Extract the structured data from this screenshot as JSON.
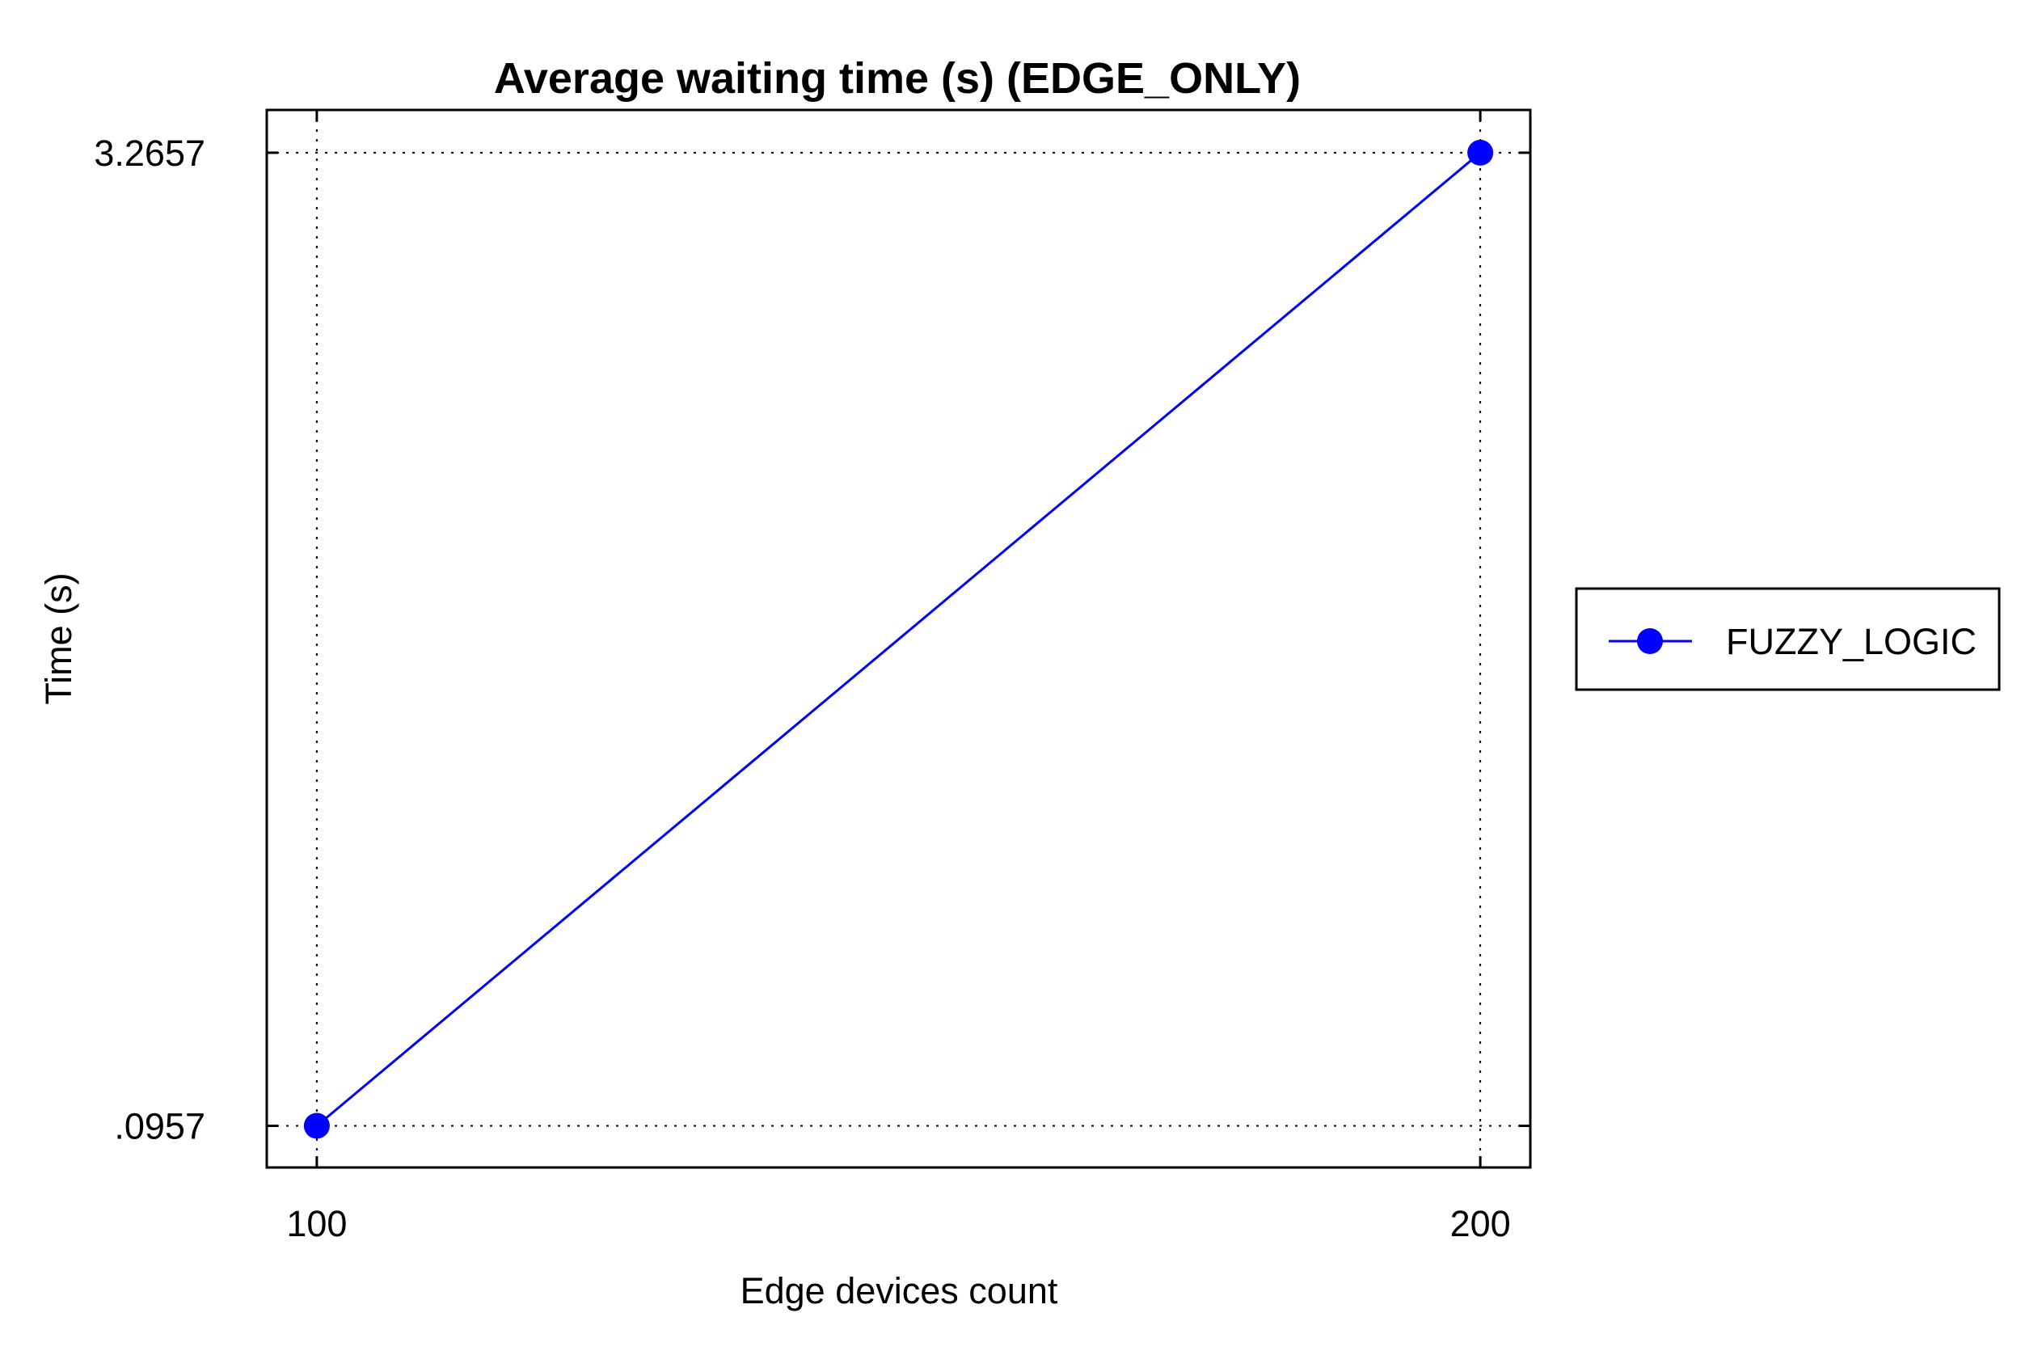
{
  "chart_data": {
    "type": "line",
    "title": "Average waiting time (s) (EDGE_ONLY)",
    "xlabel": "Edge devices count",
    "ylabel": "Time (s)",
    "x": [
      100,
      200
    ],
    "x_tick_labels": [
      "100",
      "200"
    ],
    "y_tick_values": [
      0.0957,
      3.2657
    ],
    "y_tick_labels": [
      ".0957",
      "3.2657"
    ],
    "xlim": [
      95.7,
      204.3
    ],
    "ylim": [
      -0.04,
      3.405
    ],
    "grid": true,
    "grid_style": "dotted",
    "legend_position": "right",
    "series": [
      {
        "name": "FUZZY_LOGIC",
        "color": "#0000ff",
        "marker": "circle",
        "values": [
          0.0957,
          3.2657
        ]
      }
    ]
  }
}
